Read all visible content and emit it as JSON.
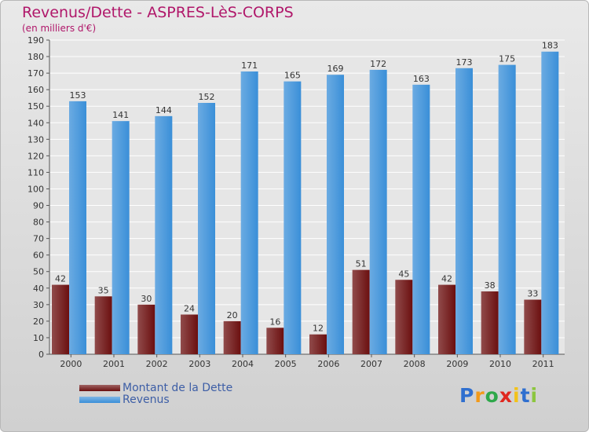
{
  "header": {
    "title": "Revenus/Dette - ASPRES-LèS-CORPS",
    "subtitle": "(en milliers d'€)"
  },
  "chart_data": {
    "type": "bar",
    "categories": [
      "2000",
      "2001",
      "2002",
      "2003",
      "2004",
      "2005",
      "2006",
      "2007",
      "2008",
      "2009",
      "2010",
      "2011"
    ],
    "series": [
      {
        "name": "Montant de la Dette",
        "color": "#6b0f0f",
        "values": [
          42,
          35,
          30,
          24,
          20,
          16,
          12,
          51,
          45,
          42,
          38,
          33
        ]
      },
      {
        "name": "Revenus",
        "color": "#3a8fd8",
        "values": [
          153,
          141,
          144,
          152,
          171,
          165,
          169,
          172,
          163,
          173,
          175,
          183
        ]
      }
    ],
    "ylim": [
      0,
      190
    ],
    "ytick_step": 10,
    "grid": true,
    "legend_position": "bottom-left",
    "data_labels": true
  },
  "legend": [
    {
      "label": "Montant de la Dette",
      "color": "#6b0f0f"
    },
    {
      "label": "Revenus",
      "color": "#3a8fd8"
    }
  ],
  "logo": {
    "letters": [
      {
        "char": "P",
        "color": "#2f6fcf"
      },
      {
        "char": "r",
        "color": "#f29a1a"
      },
      {
        "char": "o",
        "color": "#2ea84a"
      },
      {
        "char": "x",
        "color": "#e0281f"
      },
      {
        "char": "i",
        "color": "#f2c21a"
      },
      {
        "char": "t",
        "color": "#2f6fcf"
      },
      {
        "char": "i",
        "color": "#8cc63f"
      }
    ]
  }
}
